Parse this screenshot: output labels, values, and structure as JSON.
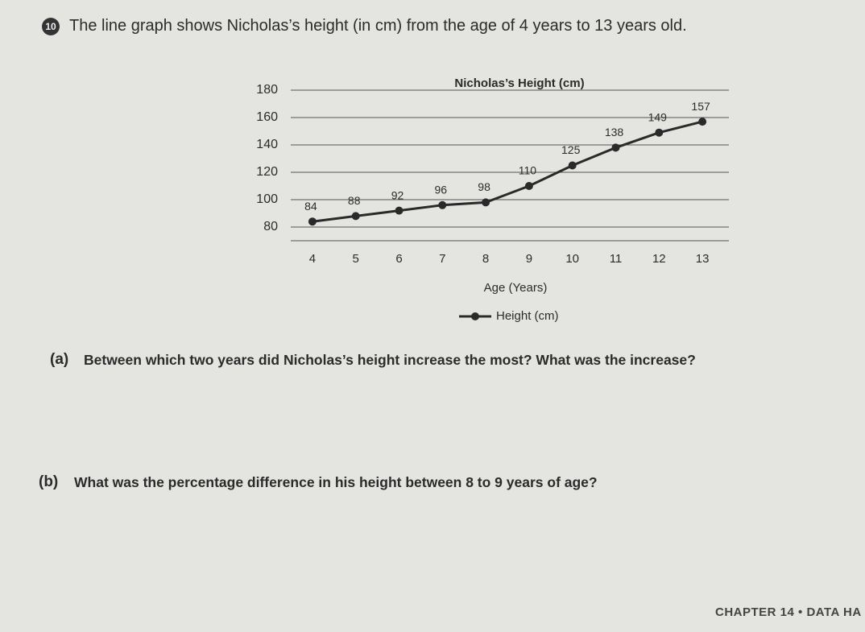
{
  "question": {
    "number": "10",
    "text": "The line graph shows Nicholas’s height (in cm) from the age of 4 years to 13 years old."
  },
  "chart_data": {
    "type": "line",
    "title": "Nicholas’s Height (cm)",
    "x_label": "Age (Years)",
    "x": [
      4,
      5,
      6,
      7,
      8,
      9,
      10,
      11,
      12,
      13
    ],
    "series": [
      {
        "name": "Height (cm)",
        "color": "#2a2a2a",
        "values": [
          84,
          88,
          92,
          96,
          98,
          110,
          125,
          138,
          149,
          157
        ]
      }
    ],
    "xlim": [
      3.5,
      13.5
    ],
    "xticks": [
      4,
      5,
      6,
      7,
      8,
      9,
      10,
      11,
      12,
      13
    ],
    "ylim": [
      70,
      180
    ],
    "yticks": [
      80,
      100,
      120,
      140,
      160,
      180
    ],
    "grid": true
  },
  "parts": [
    {
      "label": "(a)",
      "text": "Between which two years did Nicholas’s height increase the most? What was the increase?"
    },
    {
      "label": "(b)",
      "text": "What was the percentage difference in his height between 8 to 9 years of age?"
    }
  ],
  "footer": "CHAPTER 14 • DATA HA"
}
